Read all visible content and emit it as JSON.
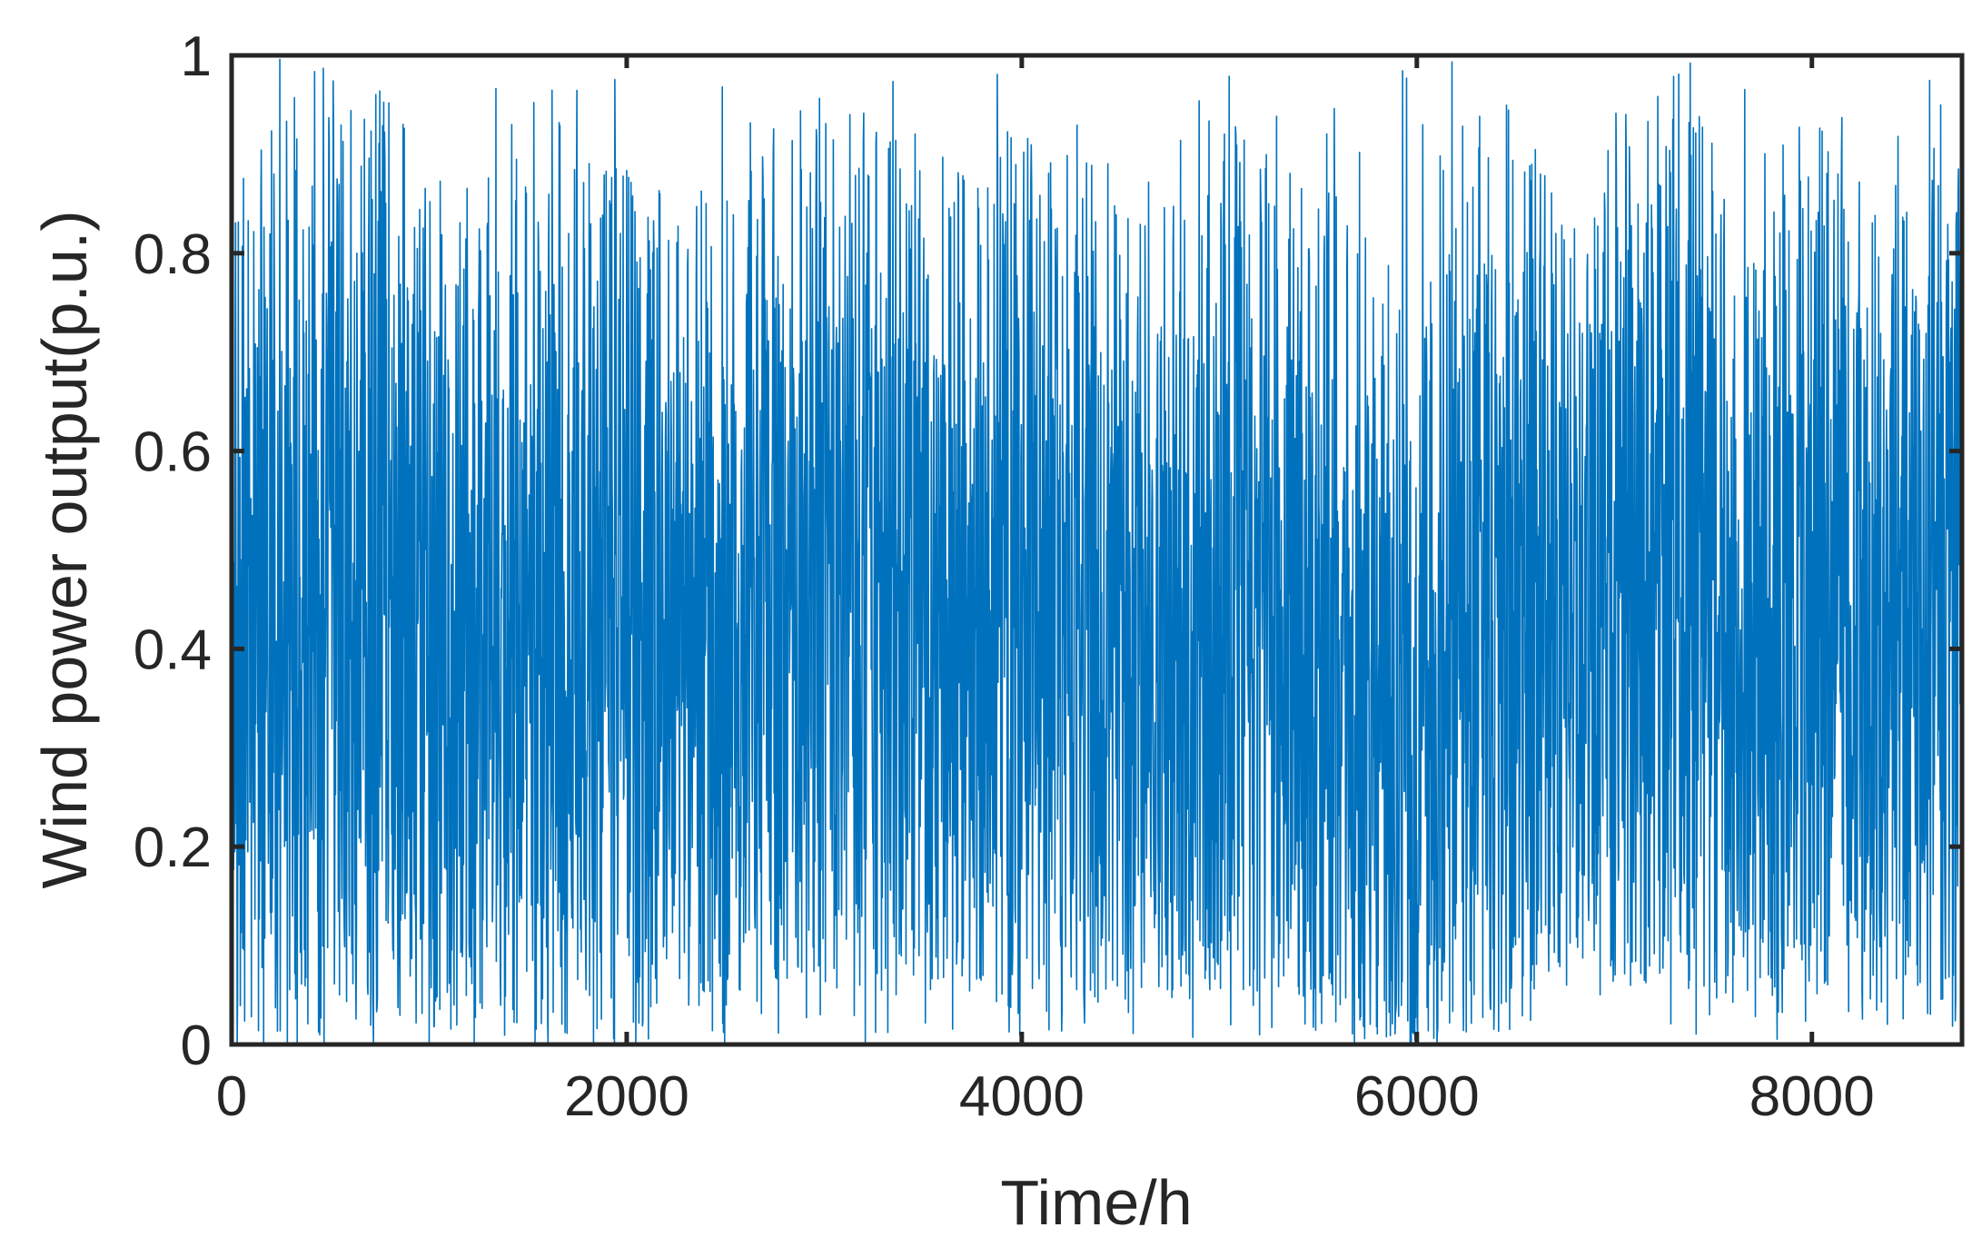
{
  "chart_data": {
    "type": "line",
    "title": "",
    "xlabel": "Time/h",
    "ylabel": "Wind power output(p.u.)",
    "xlim": [
      0,
      8760
    ],
    "ylim": [
      0,
      1
    ],
    "xticks": [
      0,
      2000,
      4000,
      6000,
      8000
    ],
    "yticks": [
      0,
      0.2,
      0.4,
      0.6,
      0.8,
      1
    ],
    "xtick_labels": [
      "0",
      "2000",
      "4000",
      "6000",
      "8000"
    ],
    "ytick_labels": [
      "0",
      "0.2",
      "0.4",
      "0.6",
      "0.8",
      "1"
    ],
    "grid": false,
    "legend": "none",
    "series_color": "#0072BD",
    "series": [
      {
        "sample_interval_h": 1,
        "envelope_note": "Hourly wind power output fluctuating densely between 0 and 1 p.u. over one year",
        "envelope_x": [
          0,
          250,
          500,
          750,
          1000,
          1250,
          1500,
          1750,
          2000,
          2250,
          2500,
          2750,
          3000,
          3250,
          3500,
          3750,
          4000,
          4250,
          4500,
          4750,
          5000,
          5250,
          5500,
          5750,
          5900,
          6000,
          6100,
          6250,
          6500,
          6750,
          7000,
          7250,
          7500,
          7750,
          8000,
          8250,
          8500,
          8760
        ],
        "envelope_upper": [
          0.88,
          0.93,
          0.92,
          0.96,
          0.9,
          0.86,
          0.9,
          0.88,
          0.87,
          0.86,
          0.84,
          0.9,
          0.92,
          0.93,
          0.9,
          0.86,
          0.94,
          0.9,
          0.88,
          0.9,
          0.92,
          0.88,
          0.86,
          0.82,
          0.75,
          0.66,
          0.8,
          0.92,
          0.94,
          0.95,
          0.93,
          0.95,
          0.93,
          0.9,
          0.92,
          0.9,
          0.9,
          0.88
        ],
        "envelope_core_upper": [
          0.72,
          0.78,
          0.76,
          0.8,
          0.74,
          0.7,
          0.72,
          0.72,
          0.72,
          0.7,
          0.68,
          0.72,
          0.74,
          0.74,
          0.72,
          0.7,
          0.76,
          0.72,
          0.7,
          0.72,
          0.72,
          0.7,
          0.68,
          0.64,
          0.58,
          0.5,
          0.62,
          0.74,
          0.78,
          0.8,
          0.78,
          0.8,
          0.78,
          0.74,
          0.76,
          0.74,
          0.74,
          0.72
        ],
        "envelope_core_lower": [
          0.12,
          0.1,
          0.08,
          0.1,
          0.12,
          0.12,
          0.1,
          0.1,
          0.1,
          0.1,
          0.08,
          0.14,
          0.16,
          0.14,
          0.12,
          0.12,
          0.1,
          0.1,
          0.12,
          0.14,
          0.12,
          0.14,
          0.1,
          0.06,
          0.04,
          0.02,
          0.08,
          0.1,
          0.12,
          0.14,
          0.14,
          0.14,
          0.12,
          0.1,
          0.12,
          0.12,
          0.1,
          0.1
        ],
        "envelope_lower": [
          0.0,
          0.0,
          0.0,
          0.02,
          0.02,
          0.02,
          0.0,
          0.0,
          0.0,
          0.02,
          0.0,
          0.06,
          0.05,
          0.05,
          0.04,
          0.04,
          0.03,
          0.03,
          0.04,
          0.05,
          0.04,
          0.05,
          0.02,
          0.0,
          0.0,
          0.0,
          0.0,
          0.02,
          0.03,
          0.05,
          0.05,
          0.06,
          0.04,
          0.02,
          0.04,
          0.04,
          0.02,
          0.02
        ]
      }
    ]
  }
}
